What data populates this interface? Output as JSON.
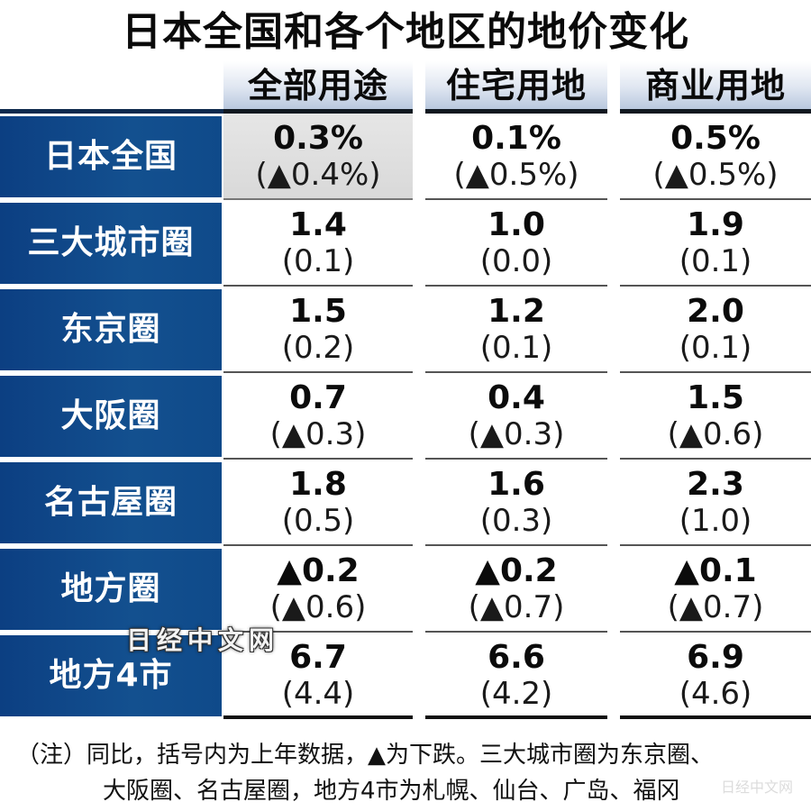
{
  "title": "日本全国和各个地区的地价变化",
  "columns": [
    "全部用途",
    "住宅用地",
    "商业用地"
  ],
  "rows": [
    {
      "label": "日本全国",
      "cells": [
        {
          "cur": "0.3%",
          "prev": "(▲0.4%)"
        },
        {
          "cur": "0.1%",
          "prev": "(▲0.5%)"
        },
        {
          "cur": "0.5%",
          "prev": "(▲0.5%)"
        }
      ]
    },
    {
      "label": "三大城市圈",
      "cells": [
        {
          "cur": "1.4",
          "prev": "(0.1)"
        },
        {
          "cur": "1.0",
          "prev": "(0.0)"
        },
        {
          "cur": "1.9",
          "prev": "(0.1)"
        }
      ]
    },
    {
      "label": "东京圈",
      "cells": [
        {
          "cur": "1.5",
          "prev": "(0.2)"
        },
        {
          "cur": "1.2",
          "prev": "(0.1)"
        },
        {
          "cur": "2.0",
          "prev": "(0.1)"
        }
      ]
    },
    {
      "label": "大阪圈",
      "cells": [
        {
          "cur": "0.7",
          "prev": "(▲0.3)"
        },
        {
          "cur": "0.4",
          "prev": "(▲0.3)"
        },
        {
          "cur": "1.5",
          "prev": "(▲0.6)"
        }
      ]
    },
    {
      "label": "名古屋圈",
      "cells": [
        {
          "cur": "1.8",
          "prev": "(0.5)"
        },
        {
          "cur": "1.6",
          "prev": "(0.3)"
        },
        {
          "cur": "2.3",
          "prev": "(1.0)"
        }
      ]
    },
    {
      "label": "地方圈",
      "cells": [
        {
          "cur": "▲0.2",
          "prev": "(▲0.6)"
        },
        {
          "cur": "▲0.2",
          "prev": "(▲0.7)"
        },
        {
          "cur": "▲0.1",
          "prev": "(▲0.7)"
        }
      ]
    },
    {
      "label": "地方4市",
      "cells": [
        {
          "cur": "6.7",
          "prev": "(4.4)"
        },
        {
          "cur": "6.6",
          "prev": "(4.2)"
        },
        {
          "cur": "6.9",
          "prev": "(4.6)"
        }
      ]
    }
  ],
  "note": {
    "line1": "（注）同比，括号内为上年数据，▲为下跌。三大城市圈为东京圈、",
    "line2": "大阪圈、名古屋圈，地方4市为札幌、仙台、广岛、福冈"
  },
  "watermark": "日经中文网",
  "watermark_small": "日经中文网",
  "colors": {
    "row_label_bg": "#0f4a8a",
    "row_label_text": "#ffffff",
    "header_gradient_end": "#b9c8de",
    "highlight_cell": "#dedede",
    "rule": "#111111"
  },
  "chart_data": {
    "type": "table",
    "title": "日本全国和各个地区的地价变化",
    "columns": [
      "全部用途",
      "住宅用地",
      "商业用地"
    ],
    "row_labels": [
      "日本全国",
      "三大城市圈",
      "东京圈",
      "大阪圈",
      "名古屋圈",
      "地方圈",
      "地方4市"
    ],
    "unit": "% (year-over-year change; ▲ = decline)",
    "current_year": [
      [
        0.3,
        0.1,
        0.5
      ],
      [
        1.4,
        1.0,
        1.9
      ],
      [
        1.5,
        1.2,
        2.0
      ],
      [
        0.7,
        0.4,
        1.5
      ],
      [
        1.8,
        1.6,
        2.3
      ],
      [
        -0.2,
        -0.2,
        -0.1
      ],
      [
        6.7,
        6.6,
        6.9
      ]
    ],
    "previous_year": [
      [
        -0.4,
        -0.5,
        -0.5
      ],
      [
        0.1,
        0.0,
        0.1
      ],
      [
        0.2,
        0.1,
        0.1
      ],
      [
        -0.3,
        -0.3,
        -0.6
      ],
      [
        0.5,
        0.3,
        1.0
      ],
      [
        -0.6,
        -0.7,
        -0.7
      ],
      [
        4.4,
        4.2,
        4.6
      ]
    ],
    "annotations": [
      "括号内为上年数据",
      "▲为下跌",
      "三大城市圈为东京圈、大阪圈、名古屋圈",
      "地方4市为札幌、仙台、广岛、福冈"
    ]
  }
}
